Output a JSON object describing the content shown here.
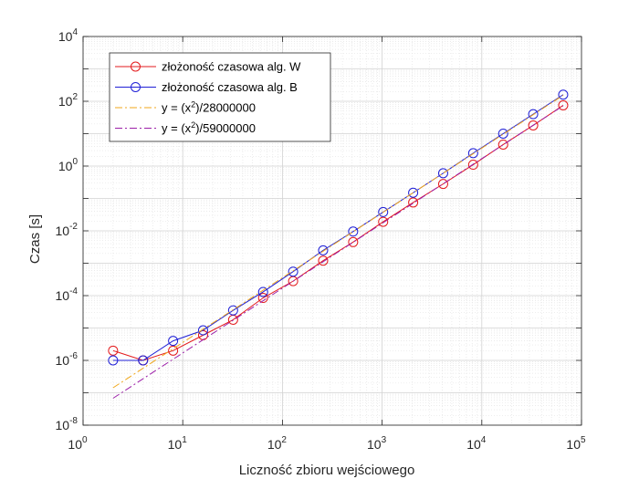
{
  "chart_data": {
    "type": "line",
    "title": "",
    "xlabel": "Liczność zbioru wejściowego",
    "ylabel": "Czas [s]",
    "xscale": "log",
    "yscale": "log",
    "xlim": [
      1,
      100000
    ],
    "ylim": [
      1e-08,
      10000
    ],
    "grid": true,
    "minor_grid": true,
    "legend_position": "top-left",
    "x_tick_labels": [
      {
        "base": "10",
        "exp": "0"
      },
      {
        "base": "10",
        "exp": "1"
      },
      {
        "base": "10",
        "exp": "2"
      },
      {
        "base": "10",
        "exp": "3"
      },
      {
        "base": "10",
        "exp": "4"
      },
      {
        "base": "10",
        "exp": "5"
      }
    ],
    "y_tick_labels": [
      {
        "base": "10",
        "exp": "-8"
      },
      {
        "base": "10",
        "exp": "-6"
      },
      {
        "base": "10",
        "exp": "-4"
      },
      {
        "base": "10",
        "exp": "-2"
      },
      {
        "base": "10",
        "exp": "0"
      },
      {
        "base": "10",
        "exp": "2"
      },
      {
        "base": "10",
        "exp": "4"
      }
    ],
    "series": [
      {
        "name": "złożoność czasowa alg. W",
        "color": "#e31a1c",
        "style": "solid",
        "marker": "circle",
        "x": [
          2,
          4,
          8,
          16,
          32,
          64,
          128,
          256,
          512,
          1024,
          2048,
          4096,
          8192,
          16384,
          32768,
          65536
        ],
        "y": [
          2e-06,
          1e-06,
          2e-06,
          6e-06,
          1.8e-05,
          8.5e-05,
          0.00028,
          0.0012,
          0.0045,
          0.019,
          0.075,
          0.28,
          1.1,
          4.6,
          18,
          75
        ]
      },
      {
        "name": "złożoność czasowa alg. B",
        "color": "#1f1fd6",
        "style": "solid",
        "marker": "circle",
        "x": [
          2,
          4,
          8,
          16,
          32,
          64,
          128,
          256,
          512,
          1024,
          2048,
          4096,
          8192,
          16384,
          32768,
          65536
        ],
        "y": [
          1e-06,
          1e-06,
          4e-06,
          8.5e-06,
          3.5e-05,
          0.00013,
          0.00055,
          0.0025,
          0.0095,
          0.038,
          0.15,
          0.6,
          2.5,
          10,
          40,
          160
        ]
      },
      {
        "name": {
          "prefix": "y = (x",
          "sup": "2",
          "suffix": ")/28000000"
        },
        "color": "#f0a71b",
        "style": "dashdot",
        "marker": "none",
        "x": [
          2,
          65536
        ],
        "y": [
          1.43e-07,
          153.4
        ]
      },
      {
        "name": {
          "prefix": "y = (x",
          "sup": "2",
          "suffix": ")/59000000"
        },
        "color": "#9c1fa8",
        "style": "dashdot",
        "marker": "none",
        "x": [
          2,
          65536
        ],
        "y": [
          6.78e-08,
          72.8
        ]
      }
    ]
  }
}
